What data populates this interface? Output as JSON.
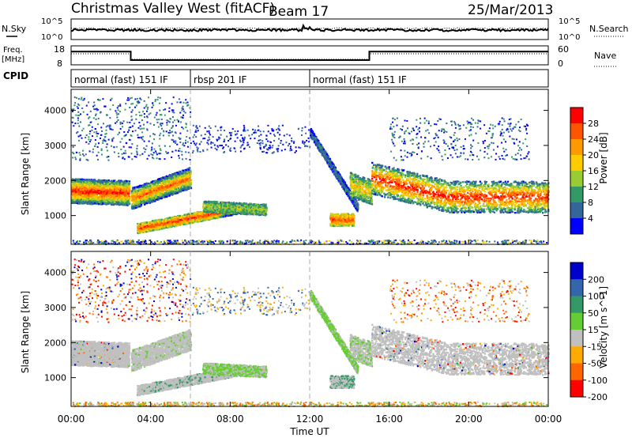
{
  "header": {
    "station": "Christmas Valley West (fitACF)",
    "beam": "Beam 17",
    "date": "25/Mar/2013"
  },
  "top_panels": {
    "noise_left_label": "N.Sky",
    "noise_right_label": "N.Search",
    "noise_left_ticks": [
      "10^5",
      "10^0"
    ],
    "noise_right_ticks": [
      "10^5",
      "10^0"
    ],
    "freq_label_1": "Freq.",
    "freq_label_2": "[MHz]",
    "freq_ticks": [
      "18",
      "8"
    ],
    "nave_label": "Nave",
    "nave_ticks": [
      "60",
      "0"
    ],
    "cpid_label": "CPID"
  },
  "chart_data": [
    {
      "type": "heatmap",
      "name": "power",
      "ylabel": "Slant Range [km]",
      "ylim": [
        180,
        4600
      ],
      "yticks": [
        1000,
        2000,
        3000,
        4000
      ],
      "xlim": [
        0,
        24
      ],
      "colorbar_label": "Power [dB]",
      "colorbar_ticks": [
        "28",
        "24",
        "20",
        "16",
        "12",
        "8",
        "4"
      ],
      "colorbar_colors": [
        "#ff0000",
        "#ff5500",
        "#ff9900",
        "#ffcc00",
        "#99cc33",
        "#339966",
        "#336699",
        "#0000ff"
      ]
    },
    {
      "type": "heatmap",
      "name": "velocity",
      "ylabel": "Slant Range [km]",
      "ylim": [
        180,
        4600
      ],
      "yticks": [
        1000,
        2000,
        3000,
        4000
      ],
      "xlim": [
        0,
        24
      ],
      "xlabel": "Time UT",
      "xticks": [
        "00:00",
        "04:00",
        "08:00",
        "12:00",
        "16:00",
        "20:00",
        "00:00"
      ],
      "colorbar_label": "Velocity [m s^-1]",
      "colorbar_ticks": [
        "200",
        "100",
        "50",
        "15",
        "-15",
        "-50",
        "-100",
        "-200"
      ],
      "colorbar_colors": [
        "#0000cc",
        "#3366aa",
        "#339966",
        "#66cc33",
        "#c0c0c0",
        "#ffaa00",
        "#ff6600",
        "#ff0000"
      ]
    }
  ],
  "cpid_segments": [
    {
      "label": "normal (fast) 151 IF",
      "start": 0,
      "end": 6
    },
    {
      "label": "rbsp 201 IF",
      "start": 6,
      "end": 12
    },
    {
      "label": "normal (fast) 151 IF",
      "start": 12,
      "end": 24
    }
  ],
  "frequency_steps": [
    {
      "start": 0,
      "end": 3,
      "mhz": 15
    },
    {
      "start": 3,
      "end": 15,
      "mhz": 10.5
    },
    {
      "start": 15,
      "end": 24,
      "mhz": 15
    }
  ]
}
